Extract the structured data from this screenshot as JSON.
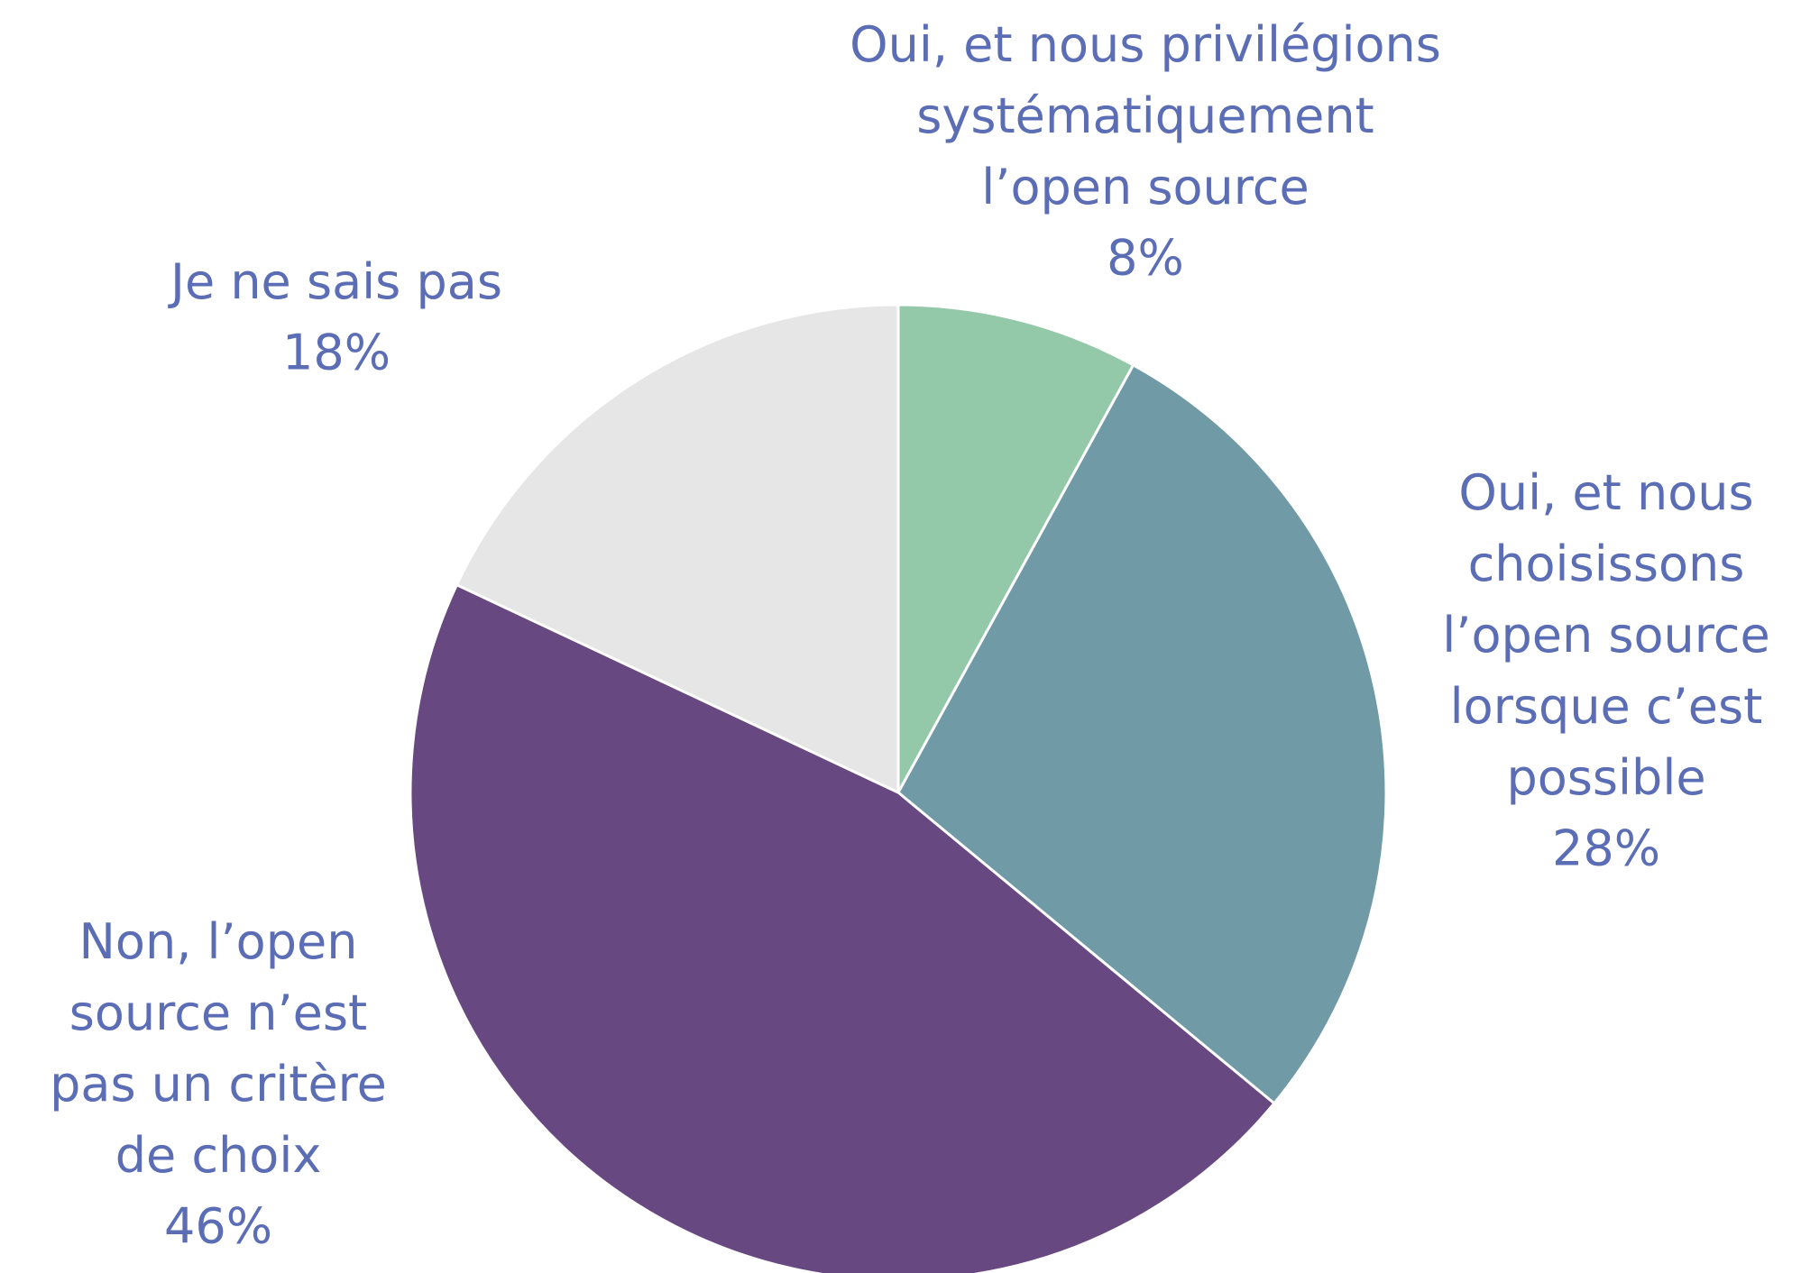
{
  "chart_data": {
    "type": "pie",
    "categories": [
      "Oui, et nous privilégions\nsystématiquement\nl’open source",
      "Oui, et nous\nchoisissons\nl’open source\nlorsque c’est\npossible",
      "Non, l’open\nsource n’est\npas un critère\nde choix",
      "Je ne sais pas"
    ],
    "values": [
      8,
      28,
      46,
      18
    ],
    "value_labels": [
      "8%",
      "28%",
      "46%",
      "18%"
    ],
    "colors": [
      "#93c8a8",
      "#6f9aa6",
      "#684880",
      "#e6e6e6"
    ]
  }
}
